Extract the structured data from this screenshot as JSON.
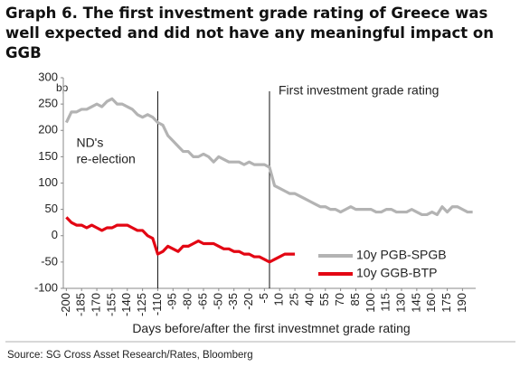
{
  "chart_data": {
    "type": "line",
    "title": "Graph 6. The first investment grade rating of Greece was well expected and did not have any meaningful impact on GGB",
    "y_unit": "bp",
    "x_label": "Days before/after the first investmnet grade rating",
    "source": "Source: SG Cross Asset Research/Rates, Bloomberg",
    "x": [
      -200,
      -195,
      -190,
      -185,
      -180,
      -175,
      -170,
      -165,
      -160,
      -155,
      -150,
      -145,
      -140,
      -135,
      -130,
      -125,
      -120,
      -115,
      -110,
      -105,
      -100,
      -95,
      -90,
      -85,
      -80,
      -75,
      -70,
      -65,
      -60,
      -55,
      -50,
      -45,
      -40,
      -35,
      -30,
      -25,
      -20,
      -15,
      -10,
      -5,
      0,
      5,
      10,
      15,
      20,
      25,
      30,
      35,
      40,
      45,
      50,
      55,
      60,
      65,
      70,
      75,
      80,
      85,
      90,
      95,
      100,
      105,
      110,
      115,
      120,
      125,
      130,
      135,
      140,
      145,
      150,
      155,
      160,
      165,
      170,
      175,
      180,
      185,
      190,
      195,
      200
    ],
    "series": [
      {
        "name": "10y PGB-SPGB",
        "color": "#b3b3b3",
        "values": [
          215,
          235,
          235,
          240,
          240,
          245,
          250,
          245,
          255,
          260,
          250,
          250,
          245,
          240,
          230,
          225,
          230,
          225,
          215,
          210,
          190,
          180,
          170,
          160,
          160,
          150,
          150,
          155,
          150,
          140,
          150,
          145,
          140,
          140,
          140,
          135,
          140,
          135,
          135,
          135,
          130,
          95,
          90,
          85,
          80,
          80,
          75,
          70,
          65,
          60,
          55,
          55,
          50,
          50,
          45,
          50,
          55,
          50,
          50,
          50,
          50,
          45,
          45,
          50,
          50,
          45,
          45,
          45,
          50,
          45,
          40,
          40,
          45,
          40,
          55,
          45,
          55,
          55,
          50,
          45,
          45
        ]
      },
      {
        "name": "10y GGB-BTP",
        "color": "#e30613",
        "values": [
          35,
          25,
          20,
          20,
          15,
          20,
          15,
          10,
          15,
          15,
          20,
          20,
          20,
          15,
          10,
          10,
          0,
          -5,
          -35,
          -30,
          -20,
          -25,
          -30,
          -20,
          -20,
          -15,
          -10,
          -15,
          -15,
          -15,
          -20,
          -25,
          -25,
          -30,
          -30,
          -35,
          -35,
          -40,
          -40,
          -45,
          -50,
          -45,
          -40,
          -35,
          -35,
          -35,
          null,
          null,
          null,
          null,
          null,
          null,
          null,
          null,
          null,
          null,
          null,
          null,
          null,
          null,
          null,
          null,
          null,
          null,
          null,
          null,
          null,
          null,
          null,
          null,
          null,
          null,
          null,
          null,
          null,
          null,
          null,
          null,
          null,
          null,
          null
        ]
      }
    ],
    "annotations": [
      {
        "x": -110,
        "lines": [
          "ND's",
          "re-election"
        ]
      },
      {
        "x": 0,
        "lines": [
          "First investment grade rating"
        ]
      }
    ],
    "xlim": [
      -203,
      203
    ],
    "xticks": [
      -200,
      -185,
      -170,
      -155,
      -140,
      -125,
      -110,
      -95,
      -80,
      -65,
      -50,
      -35,
      -20,
      -5,
      10,
      25,
      40,
      55,
      70,
      85,
      100,
      115,
      130,
      145,
      160,
      175,
      190
    ],
    "ylim": [
      -100,
      300
    ],
    "yticks": [
      -100,
      -50,
      0,
      50,
      100,
      150,
      200,
      250,
      300
    ],
    "legend": "lower right"
  }
}
